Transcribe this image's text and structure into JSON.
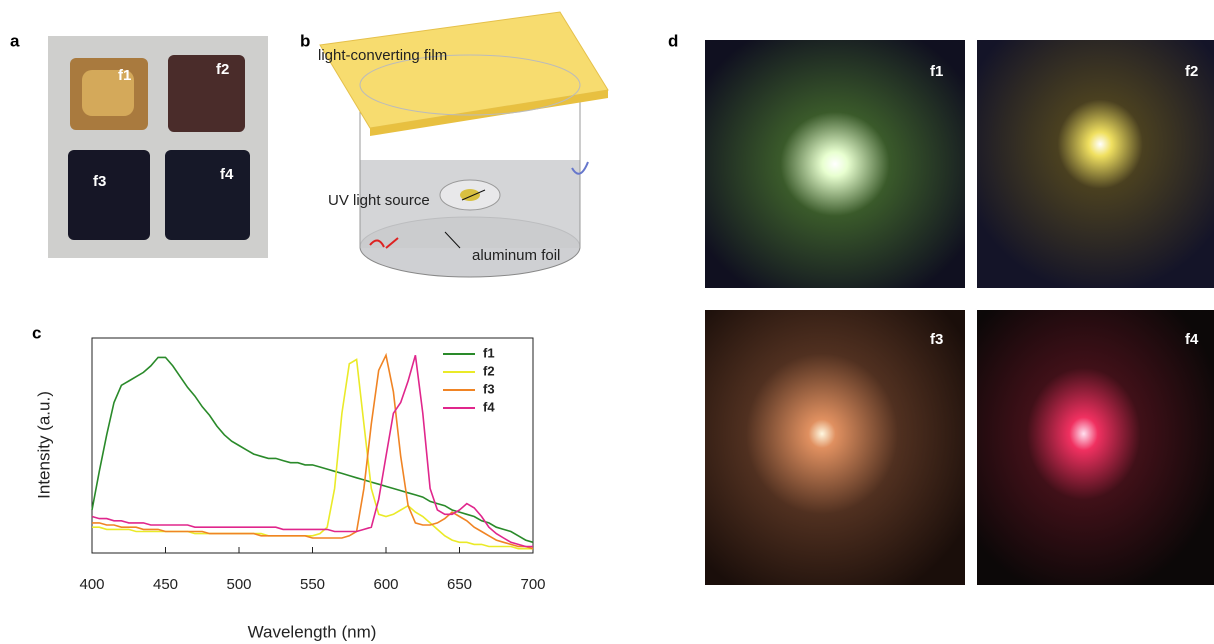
{
  "panel_labels": [
    "a",
    "b",
    "c",
    "d"
  ],
  "photo_a_labels": [
    "f1",
    "f2",
    "f3",
    "f4"
  ],
  "diagram_b_labels": [
    "light-converting film",
    "UV light source",
    "aluminum foil"
  ],
  "photo_d_labels": [
    "f1",
    "f2",
    "f3",
    "f4"
  ],
  "chart_data": {
    "type": "line",
    "x_label": "Wavelength  (nm)",
    "y_label": "Intensity (a.u.)",
    "xlim": [
      400,
      700
    ],
    "xticks": [
      400,
      450,
      500,
      550,
      600,
      650,
      700
    ],
    "ylim": [
      0,
      1
    ],
    "legend": "upper right",
    "x": [
      400,
      405,
      410,
      415,
      420,
      425,
      430,
      435,
      440,
      445,
      450,
      455,
      460,
      465,
      470,
      475,
      480,
      485,
      490,
      495,
      500,
      505,
      510,
      515,
      520,
      525,
      530,
      535,
      540,
      545,
      550,
      555,
      560,
      565,
      570,
      575,
      580,
      585,
      590,
      595,
      600,
      605,
      610,
      615,
      620,
      625,
      630,
      635,
      640,
      645,
      650,
      655,
      660,
      665,
      670,
      675,
      680,
      685,
      690,
      695,
      700
    ],
    "series": [
      {
        "name": "f1",
        "color": "#2a8a2a",
        "values": [
          0.2,
          0.38,
          0.55,
          0.7,
          0.78,
          0.8,
          0.82,
          0.84,
          0.87,
          0.91,
          0.91,
          0.87,
          0.82,
          0.77,
          0.73,
          0.68,
          0.64,
          0.59,
          0.55,
          0.52,
          0.5,
          0.48,
          0.46,
          0.45,
          0.44,
          0.44,
          0.43,
          0.42,
          0.42,
          0.41,
          0.41,
          0.4,
          0.39,
          0.38,
          0.37,
          0.36,
          0.35,
          0.34,
          0.33,
          0.32,
          0.31,
          0.3,
          0.29,
          0.28,
          0.27,
          0.26,
          0.24,
          0.23,
          0.22,
          0.2,
          0.19,
          0.18,
          0.17,
          0.15,
          0.14,
          0.12,
          0.11,
          0.1,
          0.08,
          0.06,
          0.05
        ]
      },
      {
        "name": "f2",
        "color": "#eaea28",
        "values": [
          0.12,
          0.12,
          0.11,
          0.11,
          0.11,
          0.11,
          0.1,
          0.1,
          0.1,
          0.1,
          0.1,
          0.1,
          0.1,
          0.1,
          0.09,
          0.09,
          0.09,
          0.09,
          0.09,
          0.09,
          0.09,
          0.09,
          0.09,
          0.09,
          0.08,
          0.08,
          0.08,
          0.08,
          0.08,
          0.08,
          0.08,
          0.09,
          0.12,
          0.3,
          0.65,
          0.88,
          0.9,
          0.6,
          0.3,
          0.18,
          0.17,
          0.18,
          0.2,
          0.22,
          0.19,
          0.17,
          0.14,
          0.11,
          0.08,
          0.06,
          0.05,
          0.05,
          0.04,
          0.04,
          0.03,
          0.03,
          0.03,
          0.03,
          0.02,
          0.02,
          0.02
        ]
      },
      {
        "name": "f3",
        "color": "#f08424",
        "values": [
          0.14,
          0.14,
          0.13,
          0.13,
          0.12,
          0.12,
          0.12,
          0.11,
          0.11,
          0.11,
          0.1,
          0.1,
          0.1,
          0.1,
          0.1,
          0.1,
          0.09,
          0.09,
          0.09,
          0.09,
          0.09,
          0.09,
          0.09,
          0.08,
          0.08,
          0.08,
          0.08,
          0.08,
          0.08,
          0.08,
          0.07,
          0.07,
          0.07,
          0.07,
          0.07,
          0.08,
          0.1,
          0.3,
          0.6,
          0.85,
          0.92,
          0.75,
          0.45,
          0.22,
          0.14,
          0.13,
          0.13,
          0.14,
          0.16,
          0.19,
          0.17,
          0.15,
          0.12,
          0.1,
          0.08,
          0.06,
          0.05,
          0.04,
          0.03,
          0.03,
          0.02
        ]
      },
      {
        "name": "f4",
        "color": "#e0268c",
        "values": [
          0.17,
          0.16,
          0.16,
          0.15,
          0.15,
          0.14,
          0.14,
          0.14,
          0.13,
          0.13,
          0.13,
          0.13,
          0.13,
          0.13,
          0.12,
          0.12,
          0.12,
          0.12,
          0.12,
          0.12,
          0.12,
          0.12,
          0.12,
          0.12,
          0.12,
          0.12,
          0.11,
          0.11,
          0.11,
          0.11,
          0.11,
          0.11,
          0.11,
          0.1,
          0.1,
          0.1,
          0.1,
          0.11,
          0.12,
          0.25,
          0.45,
          0.65,
          0.7,
          0.8,
          0.92,
          0.65,
          0.3,
          0.2,
          0.18,
          0.18,
          0.2,
          0.23,
          0.21,
          0.17,
          0.12,
          0.09,
          0.07,
          0.05,
          0.04,
          0.03,
          0.03
        ]
      }
    ]
  }
}
